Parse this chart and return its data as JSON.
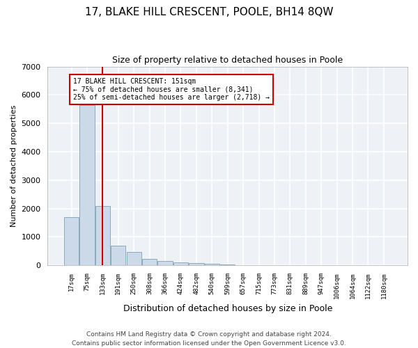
{
  "title1": "17, BLAKE HILL CRESCENT, POOLE, BH14 8QW",
  "title2": "Size of property relative to detached houses in Poole",
  "xlabel": "Distribution of detached houses by size in Poole",
  "ylabel": "Number of detached properties",
  "categories": [
    "17sqm",
    "75sqm",
    "133sqm",
    "191sqm",
    "250sqm",
    "308sqm",
    "366sqm",
    "424sqm",
    "482sqm",
    "540sqm",
    "599sqm",
    "657sqm",
    "715sqm",
    "773sqm",
    "831sqm",
    "889sqm",
    "947sqm",
    "1006sqm",
    "1064sqm",
    "1122sqm",
    "1180sqm"
  ],
  "values": [
    1700,
    5650,
    2100,
    700,
    480,
    230,
    160,
    100,
    70,
    50,
    35,
    0,
    0,
    0,
    0,
    0,
    0,
    0,
    0,
    0,
    0
  ],
  "bar_color": "#ccd9e8",
  "bar_edge_color": "#8aaabb",
  "vline_x_index": 2,
  "vline_color": "#cc0000",
  "annotation_text": "17 BLAKE HILL CRESCENT: 151sqm\n← 75% of detached houses are smaller (8,341)\n25% of semi-detached houses are larger (2,718) →",
  "annotation_box_color": "#cc0000",
  "ylim": [
    0,
    7000
  ],
  "yticks": [
    0,
    1000,
    2000,
    3000,
    4000,
    5000,
    6000,
    7000
  ],
  "footer1": "Contains HM Land Registry data © Crown copyright and database right 2024.",
  "footer2": "Contains public sector information licensed under the Open Government Licence v3.0.",
  "background_color": "#eef2f7",
  "grid_color": "#ffffff",
  "title1_fontsize": 11,
  "title2_fontsize": 9
}
